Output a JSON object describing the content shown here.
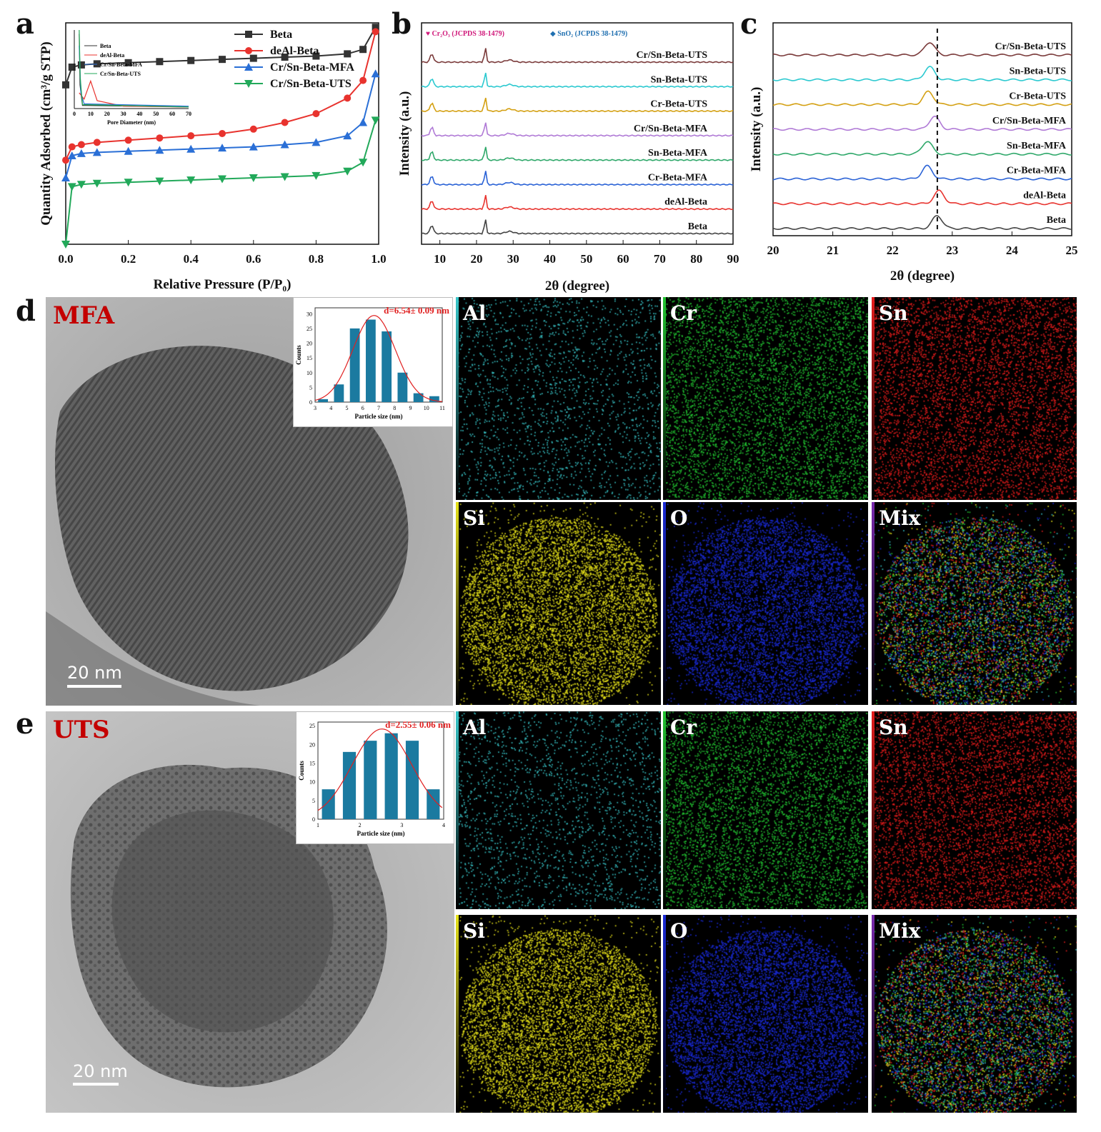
{
  "panel_letters": {
    "a": "a",
    "b": "b",
    "c": "c",
    "d": "d",
    "e": "e"
  },
  "chart_data": [
    {
      "id": "a",
      "type": "line",
      "xlabel": "Relative Pressure (P/P₀)",
      "ylabel": "Quantity Adsorbed (cm³/g STP)",
      "xlim": [
        0.0,
        1.0
      ],
      "xticks": [
        "0.0",
        "0.2",
        "0.4",
        "0.6",
        "0.8",
        "1.0"
      ],
      "legend_position": "top-right",
      "series": [
        {
          "name": "Beta",
          "color": "#333333",
          "marker": "square",
          "x": [
            0.0,
            0.02,
            0.05,
            0.1,
            0.2,
            0.3,
            0.4,
            0.5,
            0.6,
            0.7,
            0.8,
            0.9,
            0.95,
            0.99
          ],
          "y": [
            0.72,
            0.8,
            0.81,
            0.815,
            0.82,
            0.825,
            0.83,
            0.835,
            0.84,
            0.845,
            0.85,
            0.86,
            0.88,
            0.98
          ]
        },
        {
          "name": "deAl-Beta",
          "color": "#e8332e",
          "marker": "circle",
          "x": [
            0.0,
            0.02,
            0.05,
            0.1,
            0.2,
            0.3,
            0.4,
            0.5,
            0.6,
            0.7,
            0.8,
            0.9,
            0.95,
            0.99
          ],
          "y": [
            0.38,
            0.44,
            0.45,
            0.46,
            0.47,
            0.48,
            0.49,
            0.5,
            0.52,
            0.55,
            0.59,
            0.66,
            0.74,
            0.96
          ]
        },
        {
          "name": "Cr/Sn-Beta-MFA",
          "color": "#2a6fd6",
          "marker": "triangle-up",
          "x": [
            0.0,
            0.02,
            0.05,
            0.1,
            0.2,
            0.3,
            0.4,
            0.5,
            0.6,
            0.7,
            0.8,
            0.9,
            0.95,
            0.99
          ],
          "y": [
            0.3,
            0.4,
            0.41,
            0.415,
            0.42,
            0.425,
            0.43,
            0.435,
            0.44,
            0.45,
            0.46,
            0.49,
            0.55,
            0.77
          ]
        },
        {
          "name": "Cr/Sn-Beta-UTS",
          "color": "#22a95a",
          "marker": "triangle-down",
          "x": [
            0.0,
            0.02,
            0.05,
            0.1,
            0.2,
            0.3,
            0.4,
            0.5,
            0.6,
            0.7,
            0.8,
            0.9,
            0.95,
            0.99
          ],
          "y": [
            0.0,
            0.26,
            0.27,
            0.275,
            0.28,
            0.285,
            0.29,
            0.295,
            0.3,
            0.305,
            0.31,
            0.33,
            0.37,
            0.56
          ]
        }
      ],
      "inset": {
        "xlabel": "Pore Diameter (nm)",
        "xticks": [
          "0",
          "10",
          "20",
          "30",
          "40",
          "50",
          "60",
          "70"
        ],
        "xlim": [
          0,
          70
        ],
        "legend": [
          "Beta",
          "deAl-Beta",
          "Cr/Sn-Beta-MFA",
          "Cr/Sn-Beta-UTS"
        ]
      }
    },
    {
      "id": "b",
      "type": "line",
      "xlabel": "2θ (degree)",
      "ylabel": "Intensity (a.u.)",
      "xlim": [
        5,
        90
      ],
      "xticks": [
        "10",
        "20",
        "30",
        "40",
        "50",
        "60",
        "70",
        "80",
        "90"
      ],
      "annotations": [
        "♥ Cr₂O₃ (JCPDS 38-1479)",
        "◆ SnO₂ (JCPDS 38-1479)"
      ],
      "series": [
        {
          "name": "Cr/Sn-Beta-UTS",
          "color": "#7a3a3a"
        },
        {
          "name": "Sn-Beta-UTS",
          "color": "#2cc9d0"
        },
        {
          "name": "Cr-Beta-UTS",
          "color": "#d4a012"
        },
        {
          "name": "Cr/Sn-Beta-MFA",
          "color": "#b07ad6"
        },
        {
          "name": "Sn-Beta-MFA",
          "color": "#2fa86a"
        },
        {
          "name": "Cr-Beta-MFA",
          "color": "#2a62d6"
        },
        {
          "name": "deAl-Beta",
          "color": "#e8332e"
        },
        {
          "name": "Beta",
          "color": "#444444"
        }
      ]
    },
    {
      "id": "c",
      "type": "line",
      "xlabel": "2θ (degree)",
      "ylabel": "Intensity (a.u.)",
      "xlim": [
        20,
        25
      ],
      "xticks": [
        "20",
        "21",
        "22",
        "23",
        "24",
        "25"
      ],
      "reference_line_x": 22.75,
      "series": [
        {
          "name": "Cr/Sn-Beta-UTS",
          "color": "#7a3a3a",
          "peak_x": 22.62
        },
        {
          "name": "Sn-Beta-UTS",
          "color": "#2cc9d0",
          "peak_x": 22.62
        },
        {
          "name": "Cr-Beta-UTS",
          "color": "#d4a012",
          "peak_x": 22.6
        },
        {
          "name": "Cr/Sn-Beta-MFA",
          "color": "#b07ad6",
          "peak_x": 22.7
        },
        {
          "name": "Sn-Beta-MFA",
          "color": "#2fa86a",
          "peak_x": 22.58
        },
        {
          "name": "Cr-Beta-MFA",
          "color": "#2a62d6",
          "peak_x": 22.58
        },
        {
          "name": "deAl-Beta",
          "color": "#e8332e",
          "peak_x": 22.78
        },
        {
          "name": "Beta",
          "color": "#444444",
          "peak_x": 22.75
        }
      ]
    },
    {
      "id": "d-hist",
      "type": "bar",
      "xlabel": "Particle size (nm)",
      "ylabel": "Counts",
      "annotation": "d=6.54± 0.09 nm",
      "xticks": [
        "3",
        "4",
        "5",
        "6",
        "7",
        "8",
        "9",
        "10",
        "11"
      ],
      "yticks": [
        "0",
        "5",
        "10",
        "15",
        "20",
        "25",
        "30"
      ],
      "ylim": [
        0,
        32
      ],
      "categories": [
        3.5,
        4.5,
        5.5,
        6.5,
        7.5,
        8.5,
        9.5,
        10.5
      ],
      "values": [
        1,
        6,
        25,
        28,
        24,
        10,
        3,
        2
      ]
    },
    {
      "id": "e-hist",
      "type": "bar",
      "xlabel": "Particle size (nm)",
      "ylabel": "Counts",
      "annotation": "d=2.55± 0.06 nm",
      "xticks": [
        "1",
        "2",
        "3",
        "4"
      ],
      "yticks": [
        "0",
        "5",
        "10",
        "15",
        "20",
        "25"
      ],
      "ylim": [
        0,
        26
      ],
      "categories": [
        1.25,
        1.75,
        2.25,
        2.75,
        3.25,
        3.75
      ],
      "values": [
        8,
        18,
        21,
        23,
        21,
        8
      ]
    }
  ],
  "tem": {
    "d_title": "MFA",
    "e_title": "UTS",
    "scale_label": "20 nm"
  },
  "maps": {
    "d": [
      {
        "label": "Al",
        "color": "#38c6c9"
      },
      {
        "label": "Cr",
        "color": "#22c431"
      },
      {
        "label": "Sn",
        "color": "#e61c1c"
      },
      {
        "label": "Si",
        "color": "#e6e21a"
      },
      {
        "label": "O",
        "color": "#1a2ad8"
      },
      {
        "label": "Mix",
        "color": "#7a2ab0"
      }
    ],
    "e": [
      {
        "label": "Al",
        "color": "#38c6c9"
      },
      {
        "label": "Cr",
        "color": "#22c431"
      },
      {
        "label": "Sn",
        "color": "#e61c1c"
      },
      {
        "label": "Si",
        "color": "#e6e21a"
      },
      {
        "label": "O",
        "color": "#1a2ad8"
      },
      {
        "label": "Mix",
        "color": "#7a2ab0"
      }
    ]
  }
}
